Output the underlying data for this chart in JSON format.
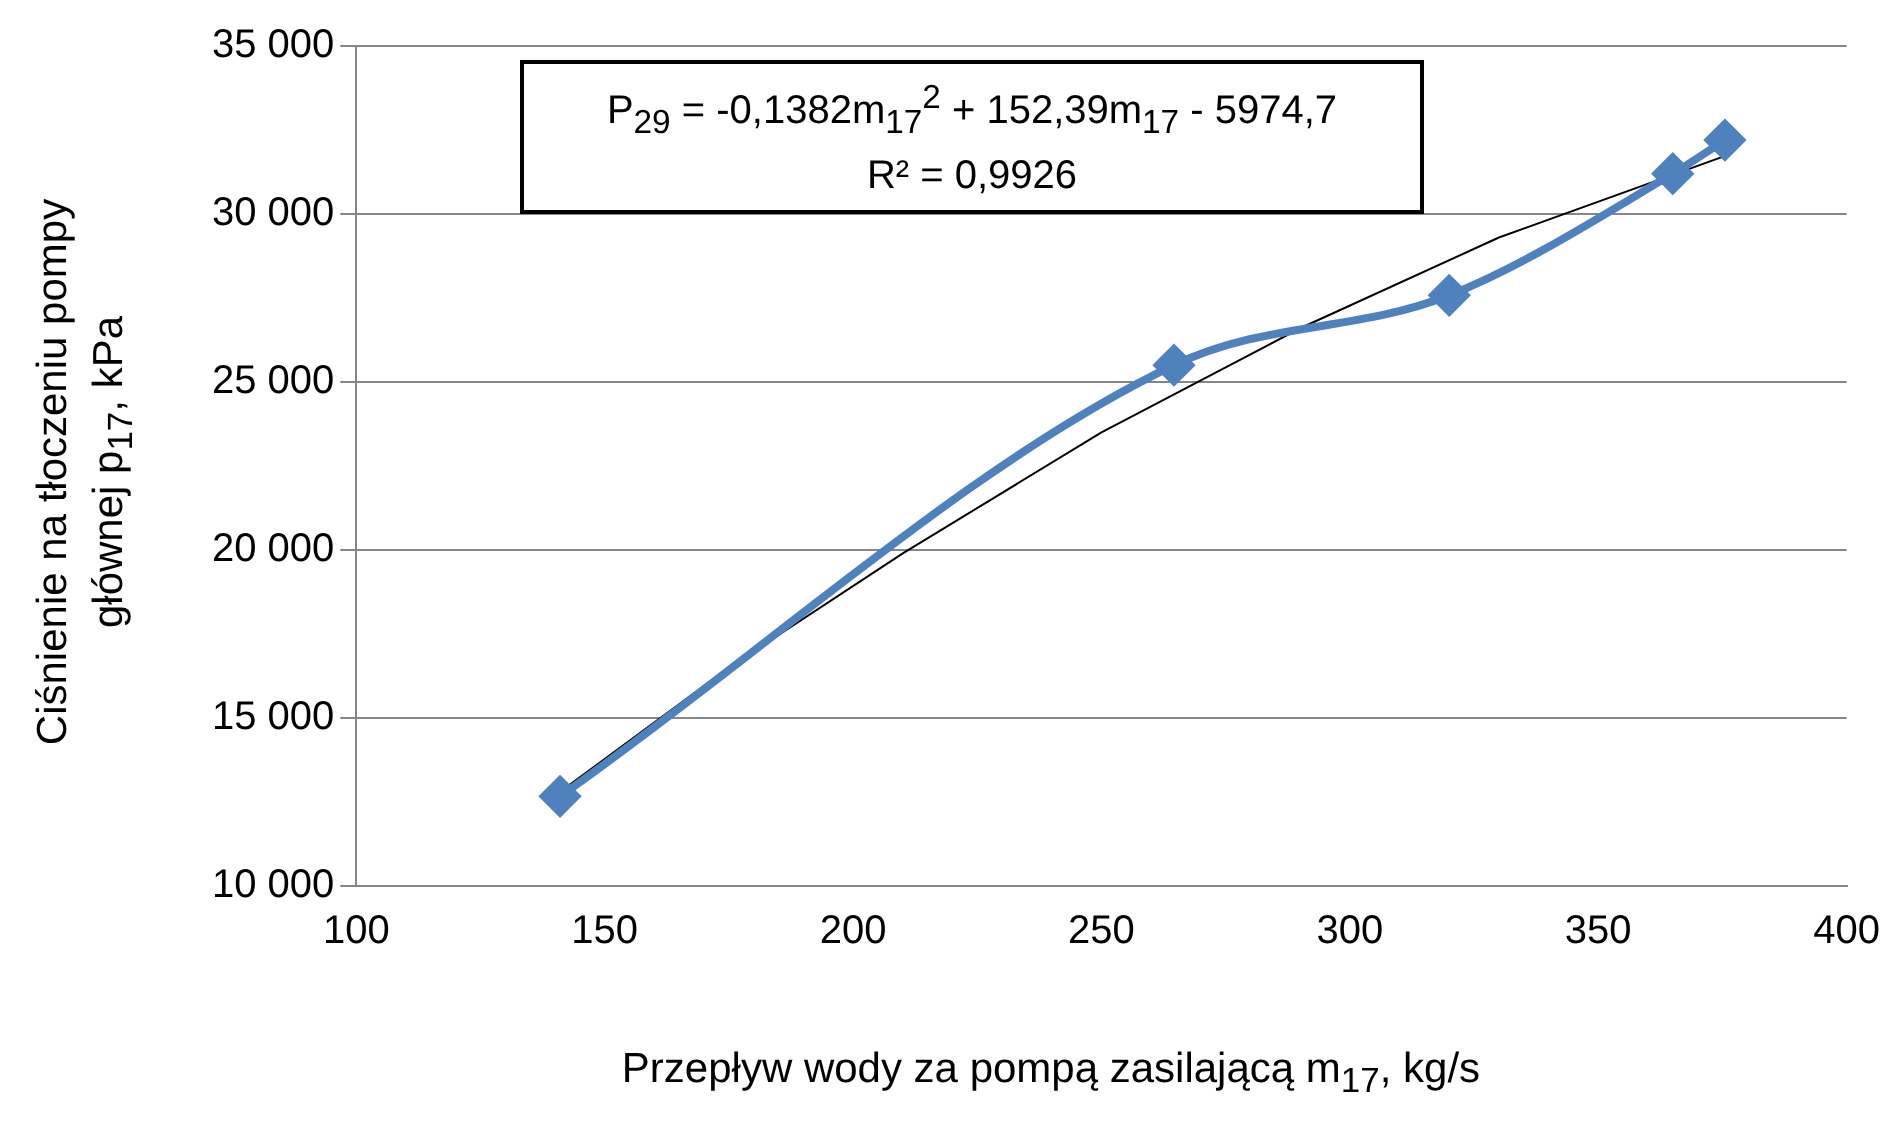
{
  "chart_data": {
    "type": "line",
    "xlabel": "Przepływ wody za pompą zasilającą m$_{17}$, kg/s",
    "ylabel": "Ciśnienie na tłoczeniu pompy głównej p$_{17}$, kPa",
    "annotations": [
      "P$_{29}$ = -0,1382m$_{17}$$^{2}$ + 152,39m$_{17}$ - 5974,7",
      "R² = 0,9926"
    ],
    "series": [
      {
        "color": "#4f81bd",
        "x": [
          141,
          264.6,
          320,
          365,
          375.5
        ],
        "values": [
          12670,
          25500,
          27580,
          31200,
          32200
        ],
        "marker": "diamond"
      },
      {
        "type": "line",
        "color": "#000000",
        "x": [
          141,
          175,
          210,
          250,
          290,
          330,
          375
        ],
        "values": [
          12800,
          16500,
          19900,
          23500,
          26600,
          29300,
          31700
        ],
        "marker": "none"
      }
    ],
    "xlim": [
      100,
      400
    ],
    "xticks": [
      100,
      150,
      200,
      250,
      300,
      350,
      400
    ],
    "ylim": [
      10000,
      35000
    ],
    "yticks": [
      {
        "value": 10000,
        "label": "10 000"
      },
      {
        "value": 15000,
        "label": "15 000"
      },
      {
        "value": 20000,
        "label": "20 000"
      },
      {
        "value": 25000,
        "label": "25 000"
      },
      {
        "value": 30000,
        "label": "30 000"
      },
      {
        "value": 35000,
        "label": "35 000"
      }
    ],
    "grid": "y",
    "legend": false
  }
}
